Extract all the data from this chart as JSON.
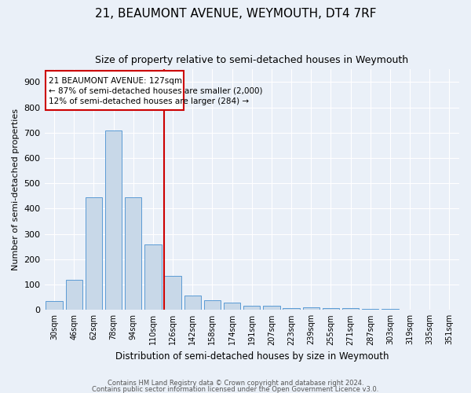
{
  "title1": "21, BEAUMONT AVENUE, WEYMOUTH, DT4 7RF",
  "title2": "Size of property relative to semi-detached houses in Weymouth",
  "xlabel": "Distribution of semi-detached houses by size in Weymouth",
  "ylabel": "Number of semi-detached properties",
  "categories": [
    "30sqm",
    "46sqm",
    "62sqm",
    "78sqm",
    "94sqm",
    "110sqm",
    "126sqm",
    "142sqm",
    "158sqm",
    "174sqm",
    "191sqm",
    "207sqm",
    "223sqm",
    "239sqm",
    "255sqm",
    "271sqm",
    "287sqm",
    "303sqm",
    "319sqm",
    "335sqm",
    "351sqm"
  ],
  "values": [
    35,
    120,
    445,
    710,
    445,
    260,
    135,
    58,
    38,
    30,
    15,
    15,
    8,
    10,
    8,
    8,
    5,
    5,
    0,
    0,
    0
  ],
  "bar_color": "#c8d8e8",
  "bar_edge_color": "#5b9bd5",
  "vline_index": 6,
  "vline_color": "#cc0000",
  "ann_line1": "21 BEAUMONT AVENUE: 127sqm",
  "ann_line2": "← 87% of semi-detached houses are smaller (2,000)",
  "ann_line3": "12% of semi-detached houses are larger (284) →",
  "annotation_box_color": "#cc0000",
  "ylim": [
    0,
    950
  ],
  "yticks": [
    0,
    100,
    200,
    300,
    400,
    500,
    600,
    700,
    800,
    900
  ],
  "footer1": "Contains HM Land Registry data © Crown copyright and database right 2024.",
  "footer2": "Contains public sector information licensed under the Open Government Licence v3.0.",
  "bg_color": "#eaf0f8",
  "grid_color": "#ffffff",
  "title1_fontsize": 11,
  "title2_fontsize": 9,
  "xlabel_fontsize": 8.5,
  "ylabel_fontsize": 8
}
